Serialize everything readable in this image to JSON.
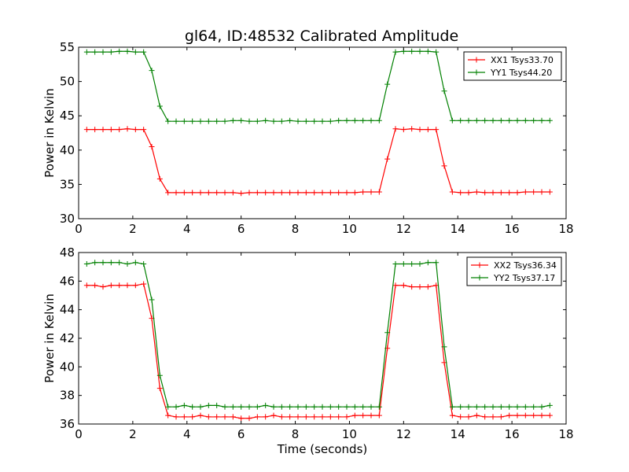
{
  "title": "gl64, ID:48532 Calibrated Amplitude",
  "chart_data": [
    {
      "type": "line",
      "xlabel": "",
      "ylabel": "Power in Kelvin",
      "xlim": [
        0,
        18
      ],
      "ylim": [
        30,
        55
      ],
      "xticks": [
        0,
        2,
        4,
        6,
        8,
        10,
        12,
        14,
        16,
        18
      ],
      "yticks": [
        30,
        35,
        40,
        45,
        50,
        55
      ],
      "grid": false,
      "legend_position": "top-right",
      "x": [
        0.3,
        0.6,
        0.9,
        1.2,
        1.5,
        1.8,
        2.1,
        2.4,
        2.7,
        3.0,
        3.3,
        3.6,
        3.9,
        4.2,
        4.5,
        4.8,
        5.1,
        5.4,
        5.7,
        6.0,
        6.3,
        6.6,
        6.9,
        7.2,
        7.5,
        7.8,
        8.1,
        8.4,
        8.7,
        9.0,
        9.3,
        9.6,
        9.9,
        10.2,
        10.5,
        10.8,
        11.1,
        11.4,
        11.7,
        12.0,
        12.3,
        12.6,
        12.9,
        13.2,
        13.5,
        13.8,
        14.1,
        14.4,
        14.7,
        15.0,
        15.3,
        15.6,
        15.9,
        16.2,
        16.5,
        16.8,
        17.1,
        17.4
      ],
      "series": [
        {
          "name": "XX1 Tsys33.70",
          "color": "#ff0000",
          "values": [
            43.0,
            43.0,
            43.0,
            43.0,
            43.0,
            43.1,
            43.0,
            43.0,
            40.5,
            35.8,
            33.8,
            33.8,
            33.8,
            33.8,
            33.8,
            33.8,
            33.8,
            33.8,
            33.8,
            33.7,
            33.8,
            33.8,
            33.8,
            33.8,
            33.8,
            33.8,
            33.8,
            33.8,
            33.8,
            33.8,
            33.8,
            33.8,
            33.8,
            33.8,
            33.9,
            33.9,
            33.9,
            38.7,
            43.1,
            43.0,
            43.1,
            43.0,
            43.0,
            43.0,
            37.7,
            33.9,
            33.8,
            33.8,
            33.9,
            33.8,
            33.8,
            33.8,
            33.8,
            33.8,
            33.9,
            33.9,
            33.9,
            33.9
          ]
        },
        {
          "name": "YY1 Tsys44.20",
          "color": "#008000",
          "values": [
            54.3,
            54.3,
            54.3,
            54.3,
            54.4,
            54.4,
            54.3,
            54.3,
            51.6,
            46.4,
            44.2,
            44.2,
            44.2,
            44.2,
            44.2,
            44.2,
            44.2,
            44.2,
            44.3,
            44.3,
            44.2,
            44.2,
            44.3,
            44.2,
            44.2,
            44.3,
            44.2,
            44.2,
            44.2,
            44.2,
            44.2,
            44.3,
            44.3,
            44.3,
            44.3,
            44.3,
            44.3,
            49.6,
            54.3,
            54.4,
            54.4,
            54.4,
            54.4,
            54.3,
            48.6,
            44.3,
            44.3,
            44.3,
            44.3,
            44.3,
            44.3,
            44.3,
            44.3,
            44.3,
            44.3,
            44.3,
            44.3,
            44.3
          ]
        }
      ]
    },
    {
      "type": "line",
      "xlabel": "Time (seconds)",
      "ylabel": "Power in Kelvin",
      "xlim": [
        0,
        18
      ],
      "ylim": [
        36,
        48
      ],
      "xticks": [
        0,
        2,
        4,
        6,
        8,
        10,
        12,
        14,
        16,
        18
      ],
      "yticks": [
        36,
        38,
        40,
        42,
        44,
        46,
        48
      ],
      "grid": false,
      "legend_position": "top-right",
      "x": [
        0.3,
        0.6,
        0.9,
        1.2,
        1.5,
        1.8,
        2.1,
        2.4,
        2.7,
        3.0,
        3.3,
        3.6,
        3.9,
        4.2,
        4.5,
        4.8,
        5.1,
        5.4,
        5.7,
        6.0,
        6.3,
        6.6,
        6.9,
        7.2,
        7.5,
        7.8,
        8.1,
        8.4,
        8.7,
        9.0,
        9.3,
        9.6,
        9.9,
        10.2,
        10.5,
        10.8,
        11.1,
        11.4,
        11.7,
        12.0,
        12.3,
        12.6,
        12.9,
        13.2,
        13.5,
        13.8,
        14.1,
        14.4,
        14.7,
        15.0,
        15.3,
        15.6,
        15.9,
        16.2,
        16.5,
        16.8,
        17.1,
        17.4
      ],
      "series": [
        {
          "name": "XX2 Tsys36.34",
          "color": "#ff0000",
          "values": [
            45.7,
            45.7,
            45.6,
            45.7,
            45.7,
            45.7,
            45.7,
            45.8,
            43.4,
            38.5,
            36.6,
            36.5,
            36.5,
            36.5,
            36.6,
            36.5,
            36.5,
            36.5,
            36.5,
            36.4,
            36.4,
            36.5,
            36.5,
            36.6,
            36.5,
            36.5,
            36.5,
            36.5,
            36.5,
            36.5,
            36.5,
            36.5,
            36.5,
            36.6,
            36.6,
            36.6,
            36.6,
            41.3,
            45.7,
            45.7,
            45.6,
            45.6,
            45.6,
            45.7,
            40.3,
            36.6,
            36.5,
            36.5,
            36.6,
            36.5,
            36.5,
            36.5,
            36.6,
            36.6,
            36.6,
            36.6,
            36.6,
            36.6
          ]
        },
        {
          "name": "YY2 Tsys37.17",
          "color": "#008000",
          "values": [
            47.2,
            47.3,
            47.3,
            47.3,
            47.3,
            47.2,
            47.3,
            47.2,
            44.7,
            39.4,
            37.2,
            37.2,
            37.3,
            37.2,
            37.2,
            37.3,
            37.3,
            37.2,
            37.2,
            37.2,
            37.2,
            37.2,
            37.3,
            37.2,
            37.2,
            37.2,
            37.2,
            37.2,
            37.2,
            37.2,
            37.2,
            37.2,
            37.2,
            37.2,
            37.2,
            37.2,
            37.2,
            42.4,
            47.2,
            47.2,
            47.2,
            47.2,
            47.3,
            47.3,
            41.4,
            37.2,
            37.2,
            37.2,
            37.2,
            37.2,
            37.2,
            37.2,
            37.2,
            37.2,
            37.2,
            37.2,
            37.2,
            37.3
          ]
        }
      ]
    }
  ]
}
